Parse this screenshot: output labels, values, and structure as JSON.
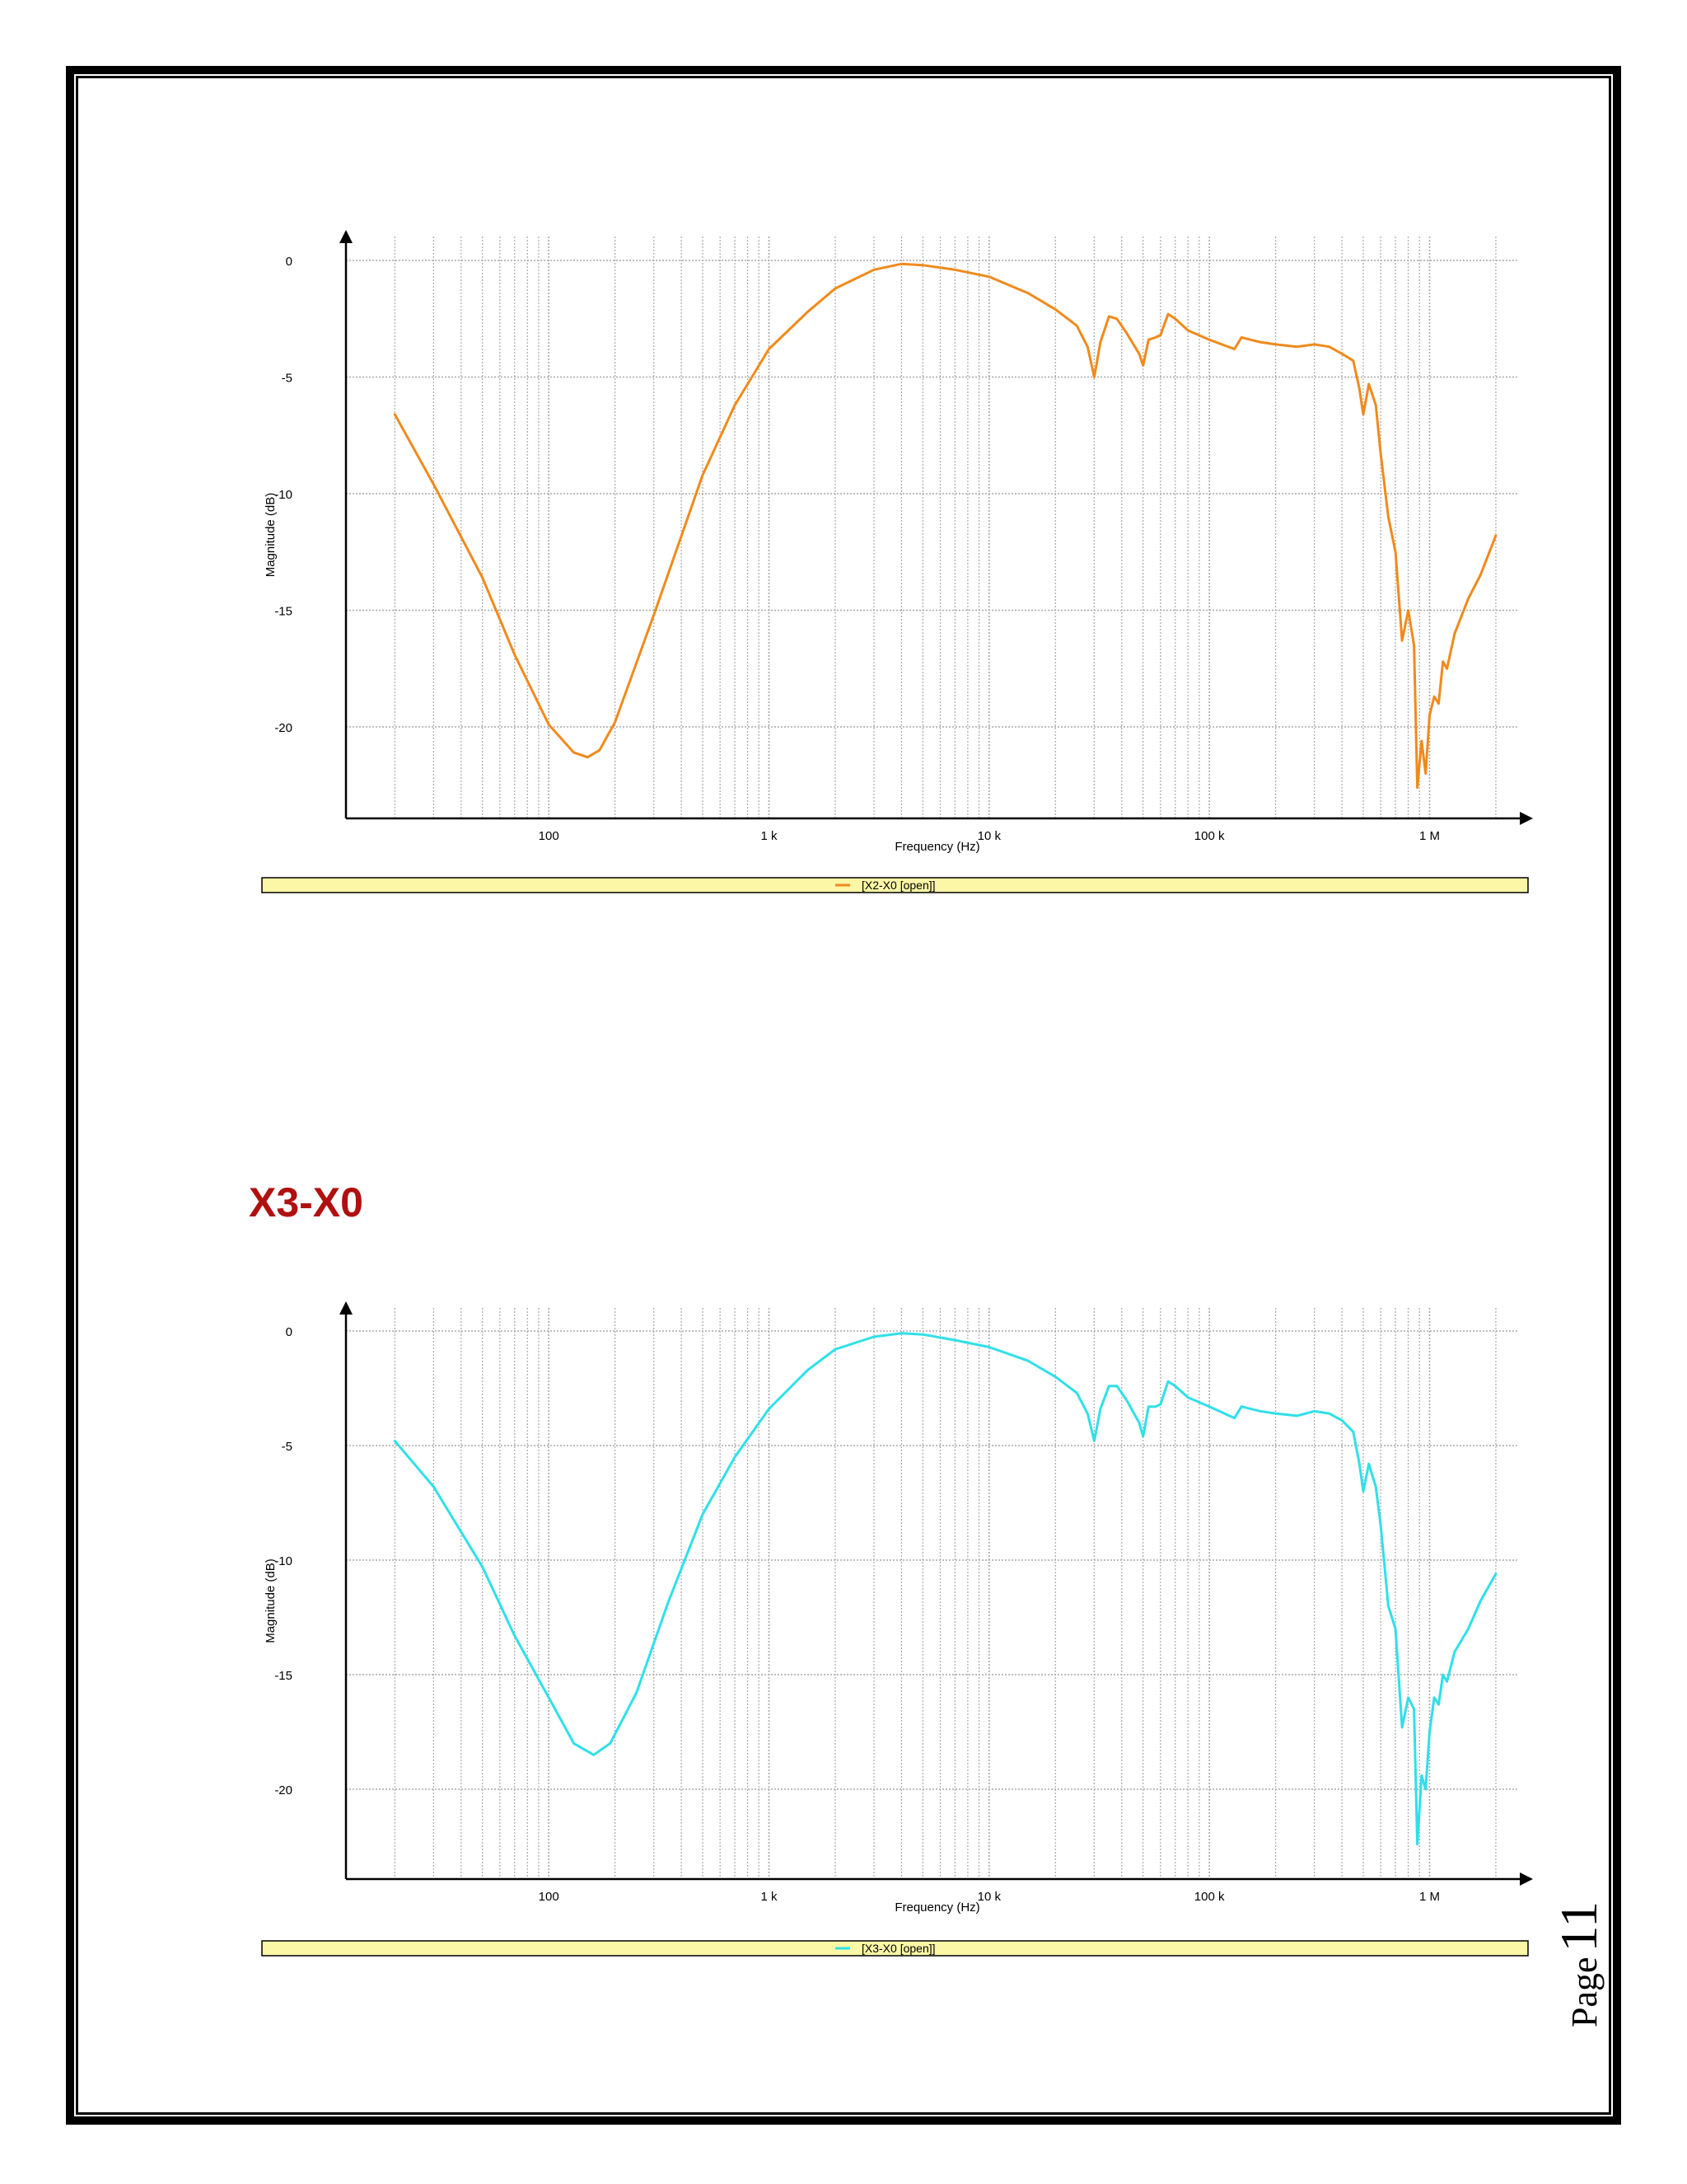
{
  "heading": "X3-X0",
  "page": {
    "word": "Page",
    "number": "11"
  },
  "chart_data": [
    {
      "type": "line",
      "xlabel": "Frequency (Hz)",
      "ylabel": "Magnitude (dB)",
      "x_scale": "log",
      "xlim": [
        12,
        2800000
      ],
      "ylim": [
        -24,
        1
      ],
      "x_ticks": [
        {
          "value": 100,
          "label": "100"
        },
        {
          "value": 1000,
          "label": "1 k"
        },
        {
          "value": 10000,
          "label": "10 k"
        },
        {
          "value": 100000,
          "label": "100 k"
        },
        {
          "value": 1000000,
          "label": "1 M"
        }
      ],
      "y_ticks": [
        {
          "value": 0,
          "label": "0"
        },
        {
          "value": -5,
          "label": "-5"
        },
        {
          "value": -10,
          "label": "-10"
        },
        {
          "value": -15,
          "label": "-15"
        },
        {
          "value": -20,
          "label": "-20"
        }
      ],
      "grid": true,
      "legend_position": "bottom",
      "color": "#f08a1c",
      "series": [
        {
          "name": "[X2-X0 [open]]",
          "points": [
            [
              20,
              -6.6
            ],
            [
              30,
              -9.6
            ],
            [
              50,
              -13.6
            ],
            [
              70,
              -16.9
            ],
            [
              100,
              -19.9
            ],
            [
              130,
              -21.1
            ],
            [
              150,
              -21.3
            ],
            [
              170,
              -21.0
            ],
            [
              200,
              -19.8
            ],
            [
              300,
              -15.2
            ],
            [
              500,
              -9.2
            ],
            [
              700,
              -6.2
            ],
            [
              1000,
              -3.8
            ],
            [
              1500,
              -2.2
            ],
            [
              2000,
              -1.2
            ],
            [
              3000,
              -0.4
            ],
            [
              4000,
              -0.15
            ],
            [
              5000,
              -0.2
            ],
            [
              7000,
              -0.4
            ],
            [
              10000,
              -0.7
            ],
            [
              15000,
              -1.4
            ],
            [
              20000,
              -2.1
            ],
            [
              25000,
              -2.8
            ],
            [
              28000,
              -3.7
            ],
            [
              30000,
              -5.0
            ],
            [
              32000,
              -3.5
            ],
            [
              35000,
              -2.4
            ],
            [
              38000,
              -2.5
            ],
            [
              42000,
              -3.1
            ],
            [
              48000,
              -4.0
            ],
            [
              50000,
              -4.5
            ],
            [
              53000,
              -3.4
            ],
            [
              57000,
              -3.3
            ],
            [
              60000,
              -3.2
            ],
            [
              65000,
              -2.3
            ],
            [
              70000,
              -2.5
            ],
            [
              80000,
              -3.0
            ],
            [
              100000,
              -3.4
            ],
            [
              130000,
              -3.8
            ],
            [
              140000,
              -3.3
            ],
            [
              170000,
              -3.5
            ],
            [
              200000,
              -3.6
            ],
            [
              250000,
              -3.7
            ],
            [
              300000,
              -3.6
            ],
            [
              350000,
              -3.7
            ],
            [
              400000,
              -4.0
            ],
            [
              450000,
              -4.3
            ],
            [
              480000,
              -5.5
            ],
            [
              500000,
              -6.6
            ],
            [
              530000,
              -5.3
            ],
            [
              570000,
              -6.2
            ],
            [
              600000,
              -8.3
            ],
            [
              650000,
              -11.0
            ],
            [
              700000,
              -12.5
            ],
            [
              750000,
              -16.3
            ],
            [
              800000,
              -15.0
            ],
            [
              850000,
              -16.5
            ],
            [
              880000,
              -22.6
            ],
            [
              920000,
              -20.6
            ],
            [
              960000,
              -22.0
            ],
            [
              1000000,
              -19.5
            ],
            [
              1050000,
              -18.7
            ],
            [
              1100000,
              -19.0
            ],
            [
              1150000,
              -17.2
            ],
            [
              1200000,
              -17.5
            ],
            [
              1300000,
              -16.0
            ],
            [
              1500000,
              -14.5
            ],
            [
              1700000,
              -13.5
            ],
            [
              2000000,
              -11.8
            ]
          ]
        }
      ]
    },
    {
      "type": "line",
      "xlabel": "Frequency (Hz)",
      "ylabel": "Magnitude (dB)",
      "x_scale": "log",
      "xlim": [
        12,
        2800000
      ],
      "ylim": [
        -24,
        1
      ],
      "x_ticks": [
        {
          "value": 100,
          "label": "100"
        },
        {
          "value": 1000,
          "label": "1 k"
        },
        {
          "value": 10000,
          "label": "10 k"
        },
        {
          "value": 100000,
          "label": "100 k"
        },
        {
          "value": 1000000,
          "label": "1 M"
        }
      ],
      "y_ticks": [
        {
          "value": 0,
          "label": "0"
        },
        {
          "value": -5,
          "label": "-5"
        },
        {
          "value": -10,
          "label": "-10"
        },
        {
          "value": -15,
          "label": "-15"
        },
        {
          "value": -20,
          "label": "-20"
        }
      ],
      "grid": true,
      "legend_position": "bottom",
      "color": "#2fe0e8",
      "series": [
        {
          "name": "[X3-X0 [open]]",
          "points": [
            [
              20,
              -4.8
            ],
            [
              30,
              -6.8
            ],
            [
              50,
              -10.3
            ],
            [
              70,
              -13.3
            ],
            [
              100,
              -16.0
            ],
            [
              130,
              -18.0
            ],
            [
              160,
              -18.5
            ],
            [
              190,
              -18.0
            ],
            [
              250,
              -15.8
            ],
            [
              350,
              -11.8
            ],
            [
              500,
              -8.0
            ],
            [
              700,
              -5.5
            ],
            [
              1000,
              -3.4
            ],
            [
              1500,
              -1.7
            ],
            [
              2000,
              -0.8
            ],
            [
              3000,
              -0.25
            ],
            [
              4000,
              -0.1
            ],
            [
              5000,
              -0.15
            ],
            [
              7000,
              -0.4
            ],
            [
              10000,
              -0.7
            ],
            [
              15000,
              -1.3
            ],
            [
              20000,
              -2.0
            ],
            [
              25000,
              -2.7
            ],
            [
              28000,
              -3.6
            ],
            [
              30000,
              -4.8
            ],
            [
              32000,
              -3.4
            ],
            [
              35000,
              -2.4
            ],
            [
              38000,
              -2.4
            ],
            [
              42000,
              -3.0
            ],
            [
              48000,
              -4.0
            ],
            [
              50000,
              -4.6
            ],
            [
              53000,
              -3.3
            ],
            [
              57000,
              -3.3
            ],
            [
              60000,
              -3.2
            ],
            [
              65000,
              -2.2
            ],
            [
              70000,
              -2.4
            ],
            [
              80000,
              -2.9
            ],
            [
              100000,
              -3.3
            ],
            [
              130000,
              -3.8
            ],
            [
              140000,
              -3.3
            ],
            [
              170000,
              -3.5
            ],
            [
              200000,
              -3.6
            ],
            [
              250000,
              -3.7
            ],
            [
              300000,
              -3.5
            ],
            [
              350000,
              -3.6
            ],
            [
              400000,
              -3.9
            ],
            [
              450000,
              -4.4
            ],
            [
              480000,
              -5.8
            ],
            [
              500000,
              -7.0
            ],
            [
              530000,
              -5.8
            ],
            [
              570000,
              -6.8
            ],
            [
              600000,
              -8.5
            ],
            [
              650000,
              -12.0
            ],
            [
              700000,
              -13.0
            ],
            [
              750000,
              -17.3
            ],
            [
              800000,
              -16.0
            ],
            [
              850000,
              -16.5
            ],
            [
              880000,
              -22.4
            ],
            [
              920000,
              -19.4
            ],
            [
              960000,
              -20.0
            ],
            [
              1000000,
              -17.5
            ],
            [
              1050000,
              -16.0
            ],
            [
              1100000,
              -16.3
            ],
            [
              1150000,
              -15.0
            ],
            [
              1200000,
              -15.3
            ],
            [
              1300000,
              -14.0
            ],
            [
              1500000,
              -13.0
            ],
            [
              1700000,
              -11.8
            ],
            [
              2000000,
              -10.6
            ]
          ]
        }
      ]
    }
  ]
}
